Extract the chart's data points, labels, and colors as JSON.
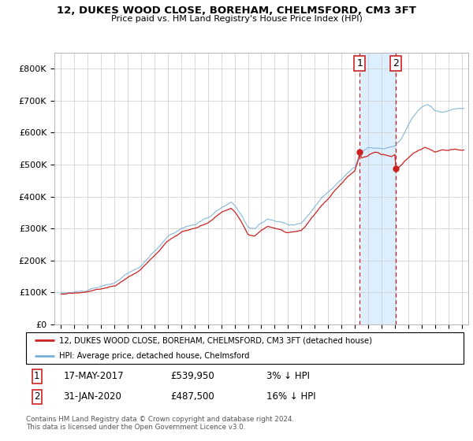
{
  "title": "12, DUKES WOOD CLOSE, BOREHAM, CHELMSFORD, CM3 3FT",
  "subtitle": "Price paid vs. HM Land Registry's House Price Index (HPI)",
  "ylabel_ticks": [
    "£0",
    "£100K",
    "£200K",
    "£300K",
    "£400K",
    "£500K",
    "£600K",
    "£700K",
    "£800K"
  ],
  "ytick_values": [
    0,
    100000,
    200000,
    300000,
    400000,
    500000,
    600000,
    700000,
    800000
  ],
  "ylim": [
    0,
    850000
  ],
  "xlim_start": 1994.5,
  "xlim_end": 2025.5,
  "background_color": "#ffffff",
  "grid_color": "#cccccc",
  "hpi_color": "#7ab0d4",
  "price_color": "#cc2222",
  "sale1_date": 2017.37,
  "sale1_price": 539950,
  "sale2_date": 2020.08,
  "sale2_price": 487500,
  "legend_price_label": "12, DUKES WOOD CLOSE, BOREHAM, CHELMSFORD, CM3 3FT (detached house)",
  "legend_hpi_label": "HPI: Average price, detached house, Chelmsford",
  "shade_color": "#ddeeff",
  "footnote": "Contains HM Land Registry data © Crown copyright and database right 2024.\nThis data is licensed under the Open Government Licence v3.0."
}
